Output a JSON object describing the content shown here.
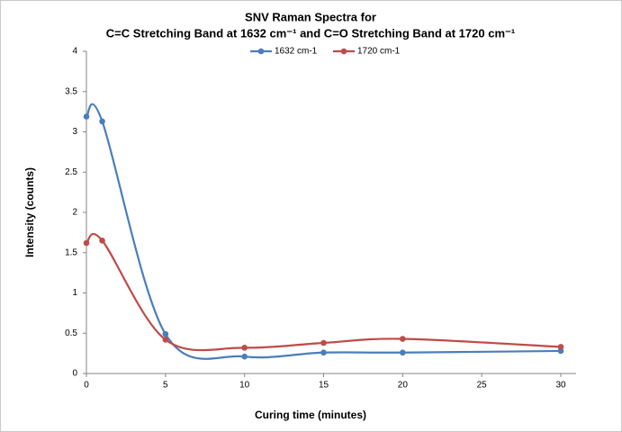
{
  "chart_data": {
    "type": "line",
    "title": [
      "SNV Raman Spectra for",
      "C=C Stretching Band at 1632 cm⁻¹ and C=O Stretching Band at 1720 cm⁻¹"
    ],
    "x_label": "Curing time (minutes)",
    "y_label": "Intensity (counts)",
    "x": [
      0,
      1,
      5,
      10,
      15,
      20,
      30
    ],
    "series": [
      {
        "name": "1632 cm-1",
        "color": "#4a7ebb",
        "values": [
          3.19,
          3.13,
          0.49,
          0.21,
          0.26,
          0.26,
          0.28
        ]
      },
      {
        "name": "1720 cm-1",
        "color": "#be4b48",
        "values": [
          1.62,
          1.65,
          0.42,
          0.32,
          0.38,
          0.43,
          0.33
        ]
      }
    ],
    "xlim": [
      0,
      30
    ],
    "xticks": [
      0,
      5,
      10,
      15,
      20,
      25,
      30
    ],
    "ylim": [
      0,
      4
    ],
    "yticks": [
      0,
      0.5,
      1,
      1.5,
      2,
      2.5,
      3,
      3.5,
      4
    ],
    "legend": "top",
    "smooth": true
  }
}
